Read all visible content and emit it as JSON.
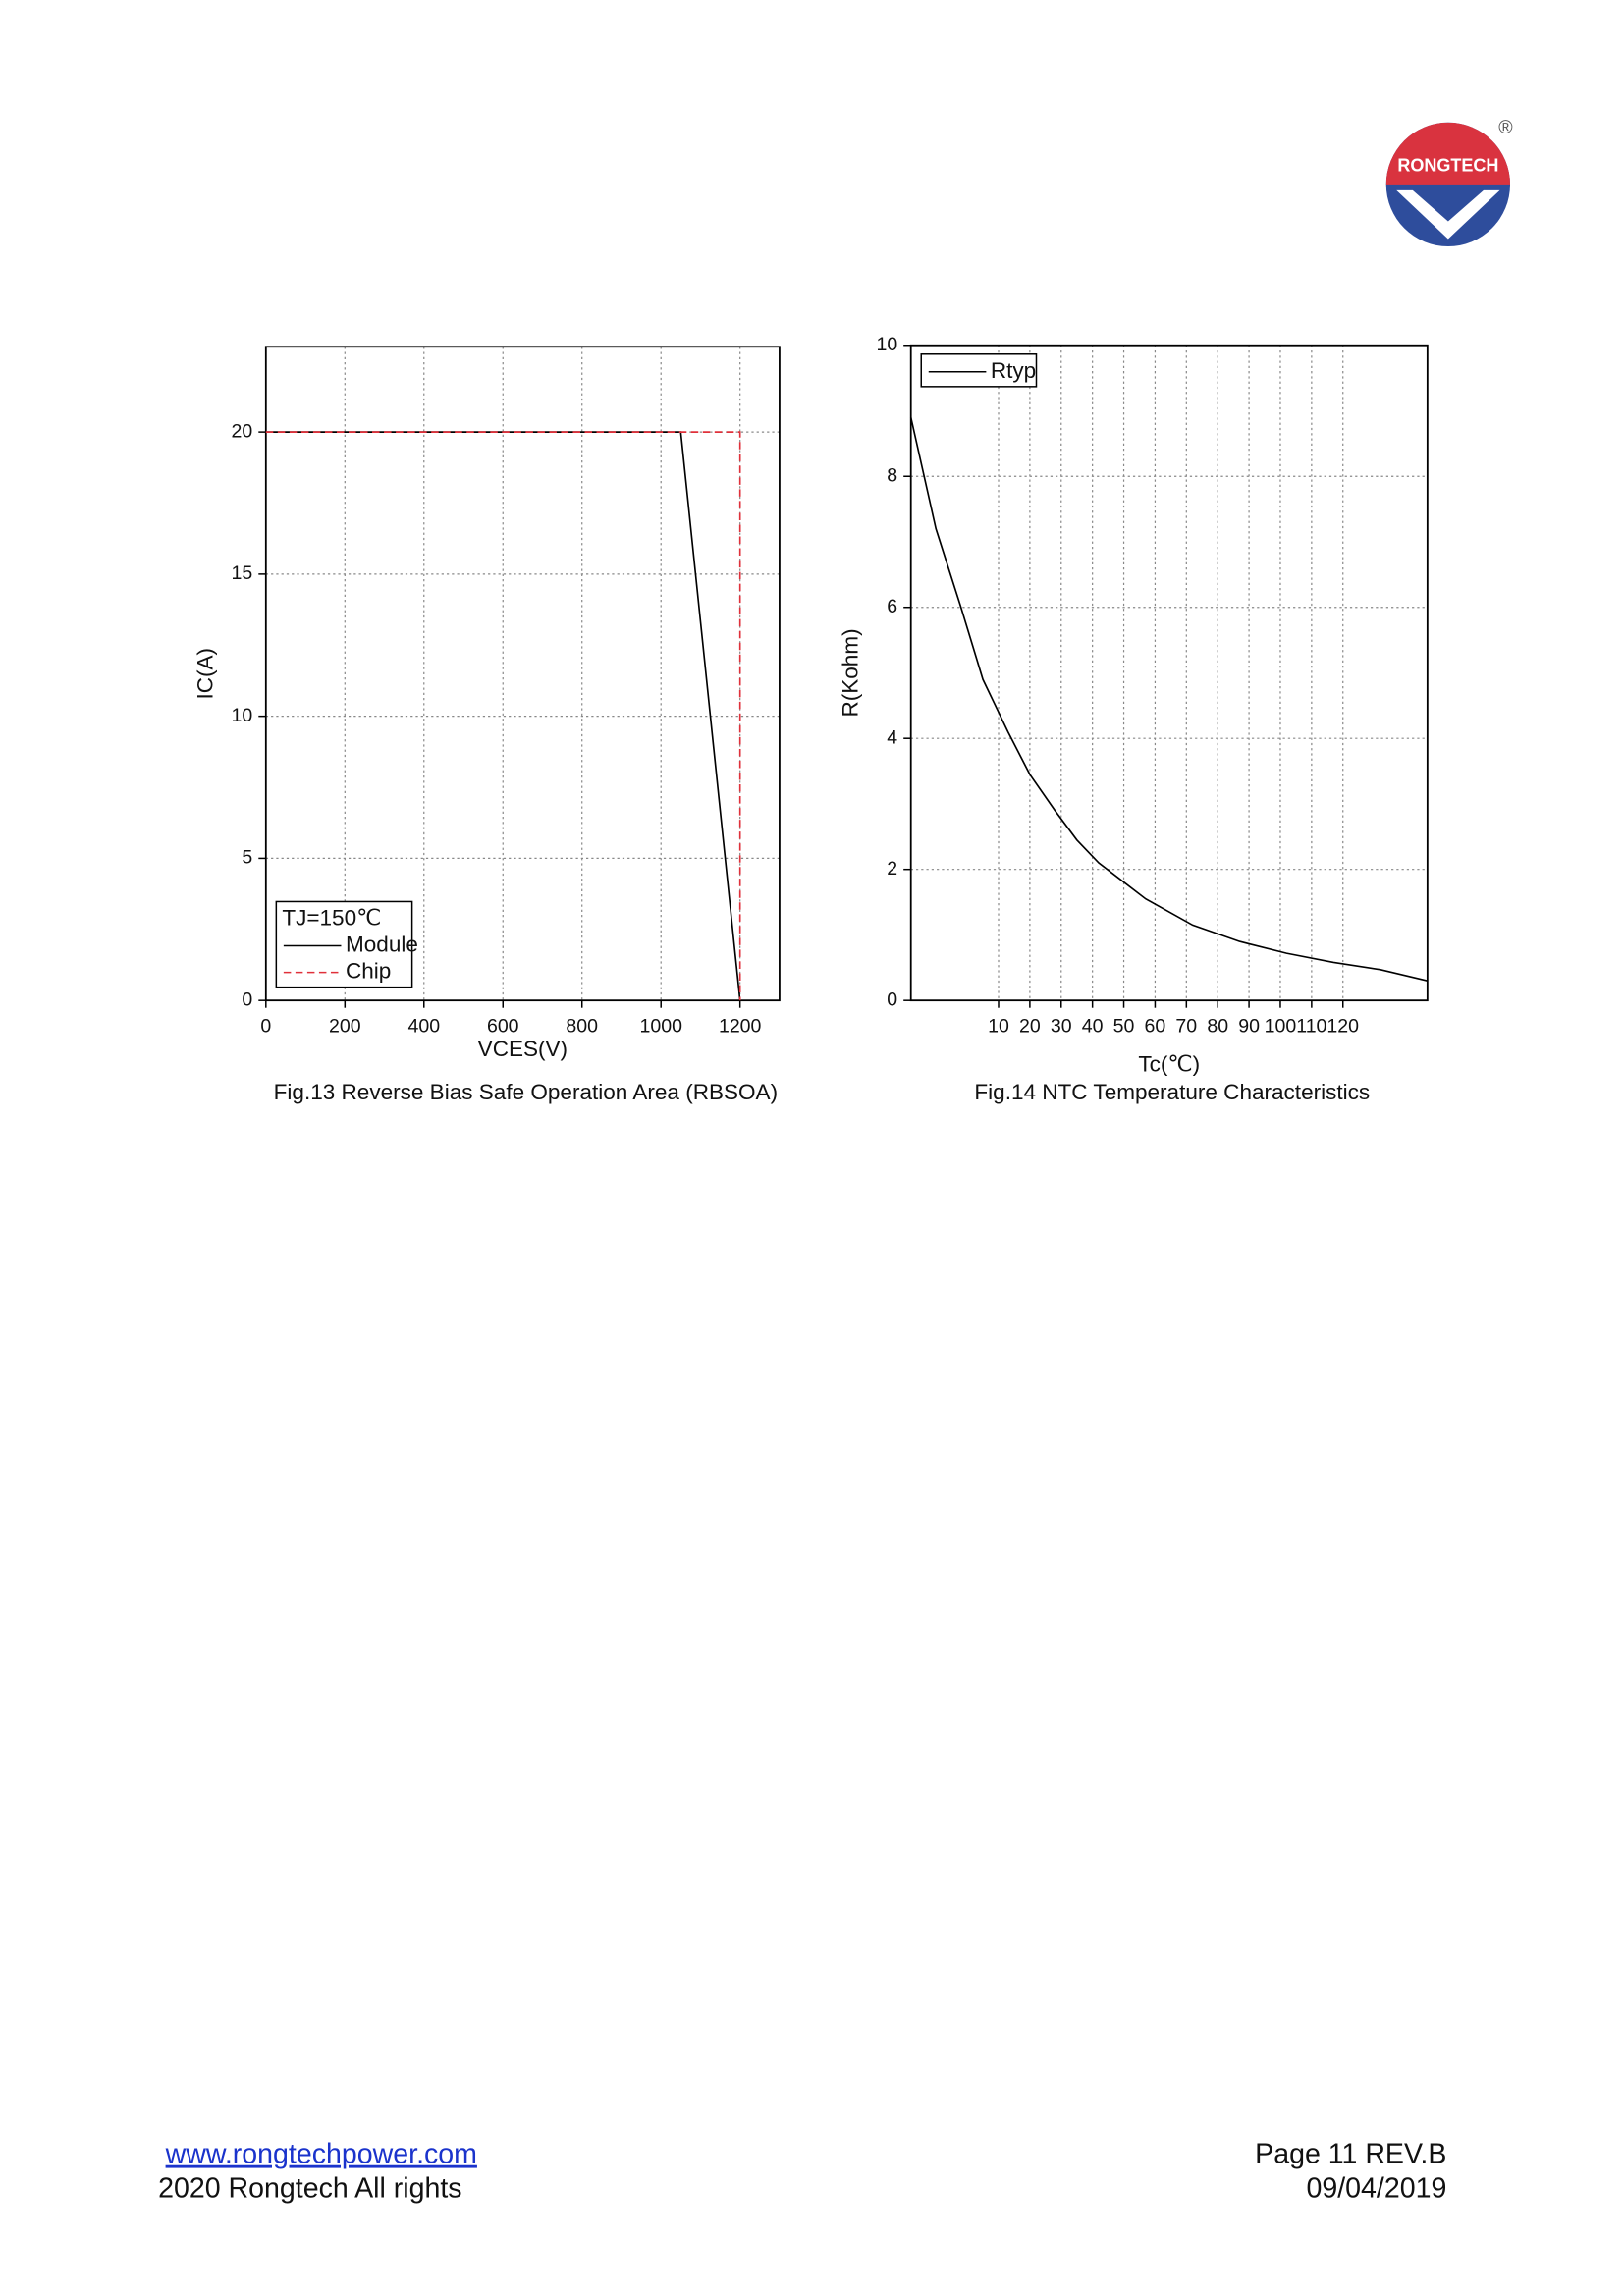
{
  "logo": {
    "text": "RONGTECH",
    "mark": "®"
  },
  "chart_data": [
    {
      "type": "line",
      "title": "Fig.13 Reverse Bias Safe Operation Area (RBSOA)",
      "x_label": "VCES(V)",
      "y_label": "IC(A)",
      "xlim": [
        0,
        1300
      ],
      "xticks": [
        0,
        200,
        400,
        600,
        800,
        1000,
        1200
      ],
      "ylim": [
        0,
        23
      ],
      "yticks": [
        0,
        5,
        10,
        15,
        20
      ],
      "grid": true,
      "legend": "lower left",
      "legend_title": "TJ=150℃",
      "series": [
        {
          "name": "Module",
          "color": "#000000",
          "dash": false,
          "x": [
            0,
            1050,
            1200
          ],
          "values": [
            20,
            20,
            0
          ]
        },
        {
          "name": "Chip",
          "color": "#e0303a",
          "dash": true,
          "x": [
            0,
            1200,
            1200
          ],
          "values": [
            20,
            20,
            0
          ]
        }
      ]
    },
    {
      "type": "line",
      "title": "Fig.14 NTC Temperature Characteristics",
      "x_label": "Tc(℃)",
      "y_label": "R(Kohm)",
      "xlim": [
        -18,
        147
      ],
      "xticks": [
        10,
        20,
        30,
        40,
        50,
        60,
        70,
        80,
        90,
        100,
        110,
        120
      ],
      "ylim": [
        0,
        10
      ],
      "yticks": [
        0,
        2,
        4,
        6,
        8,
        10
      ],
      "grid": true,
      "legend": "upper left",
      "x": [
        -18,
        -10,
        -2,
        5,
        13,
        20,
        28,
        35,
        42,
        57,
        72,
        87,
        102,
        117,
        132,
        147
      ],
      "series": [
        {
          "name": "Rtyp",
          "color": "#000000",
          "dash": false,
          "values": [
            8.9,
            7.2,
            6.0,
            4.9,
            4.1,
            3.45,
            2.9,
            2.45,
            2.1,
            1.55,
            1.15,
            0.9,
            0.72,
            0.58,
            0.47,
            0.3
          ]
        }
      ]
    }
  ],
  "footer": {
    "url": "www.rongtechpower.com",
    "rights": "2020 Rongtech All rights",
    "page": "Page 11 REV.B",
    "date": "09/04/2019"
  }
}
